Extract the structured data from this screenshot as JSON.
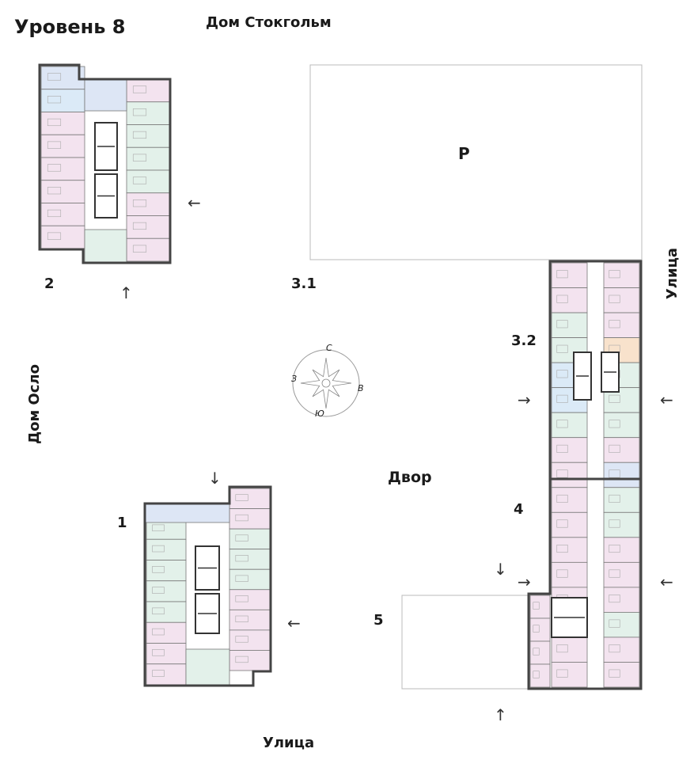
{
  "level_title": "Уровень 8",
  "labels": {
    "house_stockholm": "Дом Стокгольм",
    "house_oslo": "Дом Осло",
    "parking": "Р",
    "courtyard": "Двор",
    "street_bottom": "Улица",
    "street_right": "Улица"
  },
  "buildings": [
    {
      "id": "1"
    },
    {
      "id": "2"
    },
    {
      "id": "3.1"
    },
    {
      "id": "3.2"
    },
    {
      "id": "4"
    },
    {
      "id": "5"
    }
  ],
  "compass": {
    "north": "С",
    "south": "Ю",
    "west": "З",
    "east": "В"
  },
  "entrance_arrows": [
    "←",
    "↑",
    "↓",
    "←",
    "→",
    "←",
    "↓",
    "→",
    "←",
    "↑"
  ],
  "apartment_colors": {
    "pink": "#f3e3ef",
    "green": "#e3f1ea",
    "blue": "#dde6f5",
    "lightblue": "#dbeaf7",
    "orange": "#f8e2cc"
  }
}
